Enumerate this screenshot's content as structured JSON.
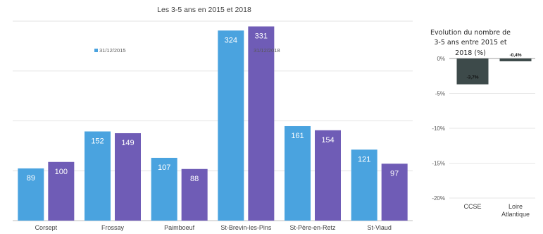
{
  "chart_data": [
    {
      "type": "bar",
      "title": "Les 3-5 ans en 2015 et 2018",
      "categories": [
        "Corsept",
        "Frossay",
        "Paimboeuf",
        "St-Brevin-les-Pins",
        "St-Père-en-Retz",
        "St-Viaud"
      ],
      "series": [
        {
          "name": "31/12/2015",
          "color": "#4aa3df",
          "values": [
            89,
            152,
            107,
            324,
            161,
            121
          ]
        },
        {
          "name": "31/12/2018",
          "color": "#6f5cb6",
          "values": [
            100,
            149,
            88,
            331,
            154,
            97
          ]
        }
      ],
      "ylim": [
        0,
        340
      ],
      "grid": true,
      "legend": "top"
    },
    {
      "type": "bar",
      "title": "Evolution du nombre de 3-5 ans entre 2015 et 2018 (%)",
      "categories": [
        "CCSE",
        "Loire Atlantique"
      ],
      "values": [
        -3.7,
        -0.4
      ],
      "data_labels": [
        "-3,7%",
        "-0,4%"
      ],
      "colors": [
        "#3d4a4a",
        "#3d4a4a"
      ],
      "yticks": [
        "0%",
        "-5%",
        "-10%",
        "-15%",
        "-20%"
      ],
      "ylim": [
        -20,
        0
      ],
      "grid": true
    }
  ]
}
